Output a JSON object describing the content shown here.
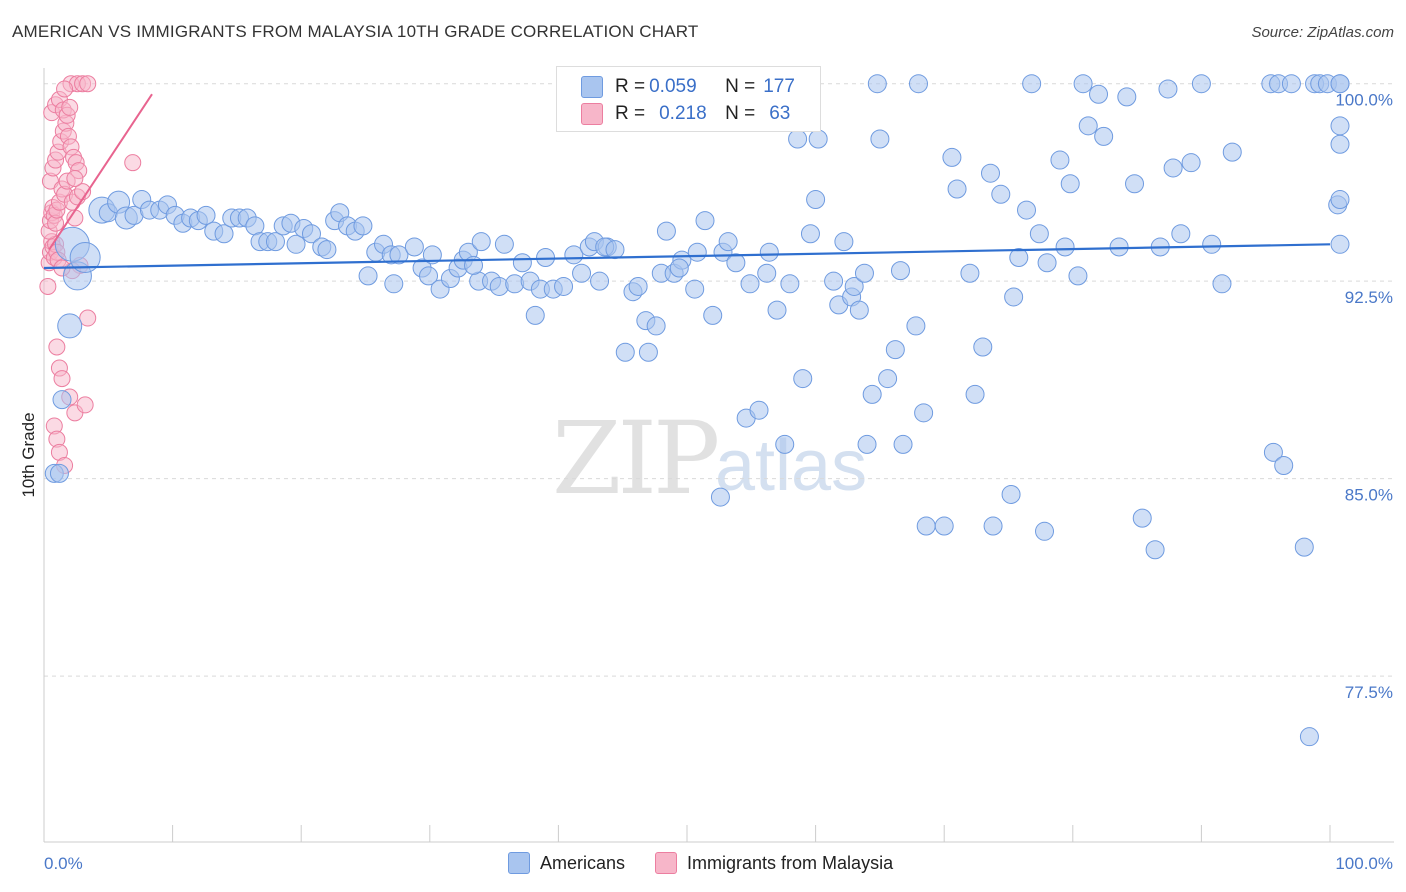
{
  "title": "AMERICAN VS IMMIGRANTS FROM MALAYSIA 10TH GRADE CORRELATION CHART",
  "source": "Source: ZipAtlas.com",
  "watermark": {
    "zip": "ZIP",
    "atlas": "atlas"
  },
  "legend": {
    "rows": [
      {
        "r_label": "R = ",
        "r_value": "0.059",
        "n_label": "N = ",
        "n_value": "177"
      },
      {
        "r_label": "R = ",
        "r_value": "0.218",
        "n_label": "N = ",
        "n_value": "63"
      }
    ]
  },
  "bottom_legend": [
    "Americans",
    "Immigrants from Malaysia"
  ],
  "colors": {
    "blue_fill": "#a9c5ef",
    "blue_stroke": "#6f9be0",
    "blue_line": "#2f6fcf",
    "pink_fill": "#f7b6c9",
    "pink_stroke": "#ec7ea0",
    "pink_line": "#e8648f",
    "grid": "#d9d9d9",
    "tick_text": "#4a78c8"
  },
  "chart_data": {
    "type": "scatter",
    "title": "AMERICAN VS IMMIGRANTS FROM MALAYSIA 10TH GRADE CORRELATION CHART",
    "xlabel": "",
    "ylabel": "10th Grade",
    "xlim": [
      0,
      100
    ],
    "ylim": [
      71.2,
      100.9
    ],
    "x_tick_labels": [
      "0.0%",
      "100.0%"
    ],
    "y_ticks": [
      {
        "value": 100.0,
        "label": "100.0%"
      },
      {
        "value": 92.5,
        "label": "92.5%"
      },
      {
        "value": 85.0,
        "label": "85.0%"
      },
      {
        "value": 77.5,
        "label": "77.5%"
      }
    ],
    "series": [
      {
        "name": "Americans",
        "R": 0.059,
        "N": 177,
        "trend": {
          "x": [
            0,
            100
          ],
          "y": [
            93.0,
            93.9
          ]
        },
        "points": [
          [
            0.8,
            85.2
          ],
          [
            1.2,
            85.2
          ],
          [
            1.4,
            88.0
          ],
          [
            2.0,
            90.8
          ],
          [
            2.2,
            93.9
          ],
          [
            2.6,
            92.7
          ],
          [
            3.2,
            93.4
          ],
          [
            4.5,
            95.2
          ],
          [
            5.0,
            95.1
          ],
          [
            5.8,
            95.5
          ],
          [
            6.4,
            94.9
          ],
          [
            7.0,
            95.0
          ],
          [
            7.6,
            95.6
          ],
          [
            8.2,
            95.2
          ],
          [
            9.0,
            95.2
          ],
          [
            9.6,
            95.4
          ],
          [
            10.2,
            95.0
          ],
          [
            10.8,
            94.7
          ],
          [
            11.4,
            94.9
          ],
          [
            12.0,
            94.8
          ],
          [
            12.6,
            95.0
          ],
          [
            13.2,
            94.4
          ],
          [
            14.0,
            94.3
          ],
          [
            14.6,
            94.9
          ],
          [
            15.2,
            94.9
          ],
          [
            15.8,
            94.9
          ],
          [
            16.4,
            94.6
          ],
          [
            16.8,
            94.0
          ],
          [
            17.4,
            94.0
          ],
          [
            18.0,
            94.0
          ],
          [
            18.6,
            94.6
          ],
          [
            19.2,
            94.7
          ],
          [
            19.6,
            93.9
          ],
          [
            20.2,
            94.5
          ],
          [
            20.8,
            94.3
          ],
          [
            21.6,
            93.8
          ],
          [
            22.0,
            93.7
          ],
          [
            22.6,
            94.8
          ],
          [
            23.0,
            95.1
          ],
          [
            23.6,
            94.6
          ],
          [
            24.2,
            94.4
          ],
          [
            24.8,
            94.6
          ],
          [
            25.2,
            92.7
          ],
          [
            25.8,
            93.6
          ],
          [
            26.4,
            93.9
          ],
          [
            27.0,
            93.5
          ],
          [
            27.2,
            92.4
          ],
          [
            27.6,
            93.5
          ],
          [
            28.8,
            93.8
          ],
          [
            29.4,
            93.0
          ],
          [
            29.9,
            92.7
          ],
          [
            30.2,
            93.5
          ],
          [
            30.8,
            92.2
          ],
          [
            31.6,
            92.6
          ],
          [
            32.2,
            93.0
          ],
          [
            32.6,
            93.3
          ],
          [
            33.0,
            93.6
          ],
          [
            33.8,
            92.5
          ],
          [
            33.4,
            93.1
          ],
          [
            34.0,
            94.0
          ],
          [
            34.8,
            92.5
          ],
          [
            35.4,
            92.3
          ],
          [
            35.8,
            93.9
          ],
          [
            36.6,
            92.4
          ],
          [
            37.2,
            93.2
          ],
          [
            37.8,
            92.5
          ],
          [
            38.2,
            91.2
          ],
          [
            38.6,
            92.2
          ],
          [
            39.0,
            93.4
          ],
          [
            39.6,
            92.2
          ],
          [
            40.4,
            92.3
          ],
          [
            41.2,
            93.5
          ],
          [
            41.8,
            92.8
          ],
          [
            42.4,
            93.8
          ],
          [
            42.8,
            94.0
          ],
          [
            43.2,
            92.5
          ],
          [
            43.8,
            93.8
          ],
          [
            43.6,
            93.8
          ],
          [
            44.4,
            93.7
          ],
          [
            45.2,
            89.8
          ],
          [
            45.8,
            92.1
          ],
          [
            46.2,
            92.3
          ],
          [
            46.8,
            91.0
          ],
          [
            47.0,
            89.8
          ],
          [
            47.6,
            90.8
          ],
          [
            48.0,
            92.8
          ],
          [
            48.4,
            94.4
          ],
          [
            49.0,
            92.8
          ],
          [
            49.6,
            93.3
          ],
          [
            49.4,
            93.0
          ],
          [
            50.6,
            92.2
          ],
          [
            50.8,
            93.6
          ],
          [
            51.4,
            94.8
          ],
          [
            52.0,
            91.2
          ],
          [
            52.6,
            84.3
          ],
          [
            52.8,
            93.6
          ],
          [
            53.2,
            94.0
          ],
          [
            53.8,
            93.2
          ],
          [
            54.6,
            87.3
          ],
          [
            54.9,
            92.4
          ],
          [
            55.6,
            87.6
          ],
          [
            56.2,
            92.8
          ],
          [
            56.4,
            93.6
          ],
          [
            57.0,
            91.4
          ],
          [
            57.6,
            86.3
          ],
          [
            58.0,
            92.4
          ],
          [
            58.6,
            97.9
          ],
          [
            59.0,
            88.8
          ],
          [
            59.6,
            94.3
          ],
          [
            60.0,
            95.6
          ],
          [
            60.2,
            97.9
          ],
          [
            61.4,
            92.5
          ],
          [
            61.8,
            91.6
          ],
          [
            62.2,
            94.0
          ],
          [
            62.8,
            91.9
          ],
          [
            63.0,
            92.3
          ],
          [
            63.4,
            91.4
          ],
          [
            63.8,
            92.8
          ],
          [
            64.0,
            86.3
          ],
          [
            64.4,
            88.2
          ],
          [
            64.8,
            100.0
          ],
          [
            65.0,
            97.9
          ],
          [
            65.6,
            88.8
          ],
          [
            66.2,
            89.9
          ],
          [
            66.6,
            92.9
          ],
          [
            66.8,
            86.3
          ],
          [
            67.8,
            90.8
          ],
          [
            68.0,
            100.0
          ],
          [
            68.4,
            87.5
          ],
          [
            68.6,
            83.2
          ],
          [
            70.0,
            83.2
          ],
          [
            70.6,
            97.2
          ],
          [
            71.0,
            96.0
          ],
          [
            72.0,
            92.8
          ],
          [
            72.4,
            88.2
          ],
          [
            73.0,
            90.0
          ],
          [
            73.6,
            96.6
          ],
          [
            73.8,
            83.2
          ],
          [
            74.4,
            95.8
          ],
          [
            75.2,
            84.4
          ],
          [
            75.4,
            91.9
          ],
          [
            75.8,
            93.4
          ],
          [
            76.4,
            95.2
          ],
          [
            76.8,
            100.0
          ],
          [
            77.4,
            94.3
          ],
          [
            77.8,
            83.0
          ],
          [
            78.0,
            93.2
          ],
          [
            79.0,
            97.1
          ],
          [
            79.4,
            93.8
          ],
          [
            79.8,
            96.2
          ],
          [
            80.4,
            92.7
          ],
          [
            80.8,
            100.0
          ],
          [
            81.2,
            98.4
          ],
          [
            82.0,
            99.6
          ],
          [
            82.4,
            98.0
          ],
          [
            83.6,
            93.8
          ],
          [
            84.2,
            99.5
          ],
          [
            84.8,
            96.2
          ],
          [
            85.4,
            83.5
          ],
          [
            86.4,
            82.3
          ],
          [
            86.8,
            93.8
          ],
          [
            87.4,
            99.8
          ],
          [
            87.8,
            96.8
          ],
          [
            88.4,
            94.3
          ],
          [
            89.2,
            97.0
          ],
          [
            90.0,
            100.0
          ],
          [
            90.8,
            93.9
          ],
          [
            91.6,
            92.4
          ],
          [
            92.4,
            97.4
          ],
          [
            95.4,
            100.0
          ],
          [
            95.6,
            86.0
          ],
          [
            96.0,
            100.0
          ],
          [
            96.4,
            85.5
          ],
          [
            97.0,
            100.0
          ],
          [
            98.0,
            82.4
          ],
          [
            98.4,
            75.2
          ],
          [
            98.8,
            100.0
          ],
          [
            99.2,
            100.0
          ],
          [
            99.8,
            100.0
          ],
          [
            100.6,
            95.4
          ],
          [
            101.0,
            95.6
          ],
          [
            101.2,
            100.0
          ],
          [
            101.6,
            97.7
          ],
          [
            103.8,
            100.0
          ],
          [
            104.6,
            98.4
          ],
          [
            105.0,
            93.9
          ]
        ]
      },
      {
        "name": "Immigrants from Malaysia",
        "R": 0.218,
        "N": 63,
        "trend": {
          "x": [
            0.4,
            8.4
          ],
          "y": [
            93.7,
            99.6
          ]
        },
        "points": [
          [
            0.3,
            92.3
          ],
          [
            0.4,
            93.2
          ],
          [
            0.5,
            93.6
          ],
          [
            0.6,
            94.0
          ],
          [
            0.7,
            93.8
          ],
          [
            0.8,
            93.4
          ],
          [
            0.9,
            93.9
          ],
          [
            1.0,
            93.6
          ],
          [
            1.1,
            93.3
          ],
          [
            0.4,
            94.4
          ],
          [
            0.5,
            94.8
          ],
          [
            0.6,
            95.1
          ],
          [
            0.7,
            95.3
          ],
          [
            0.8,
            95.0
          ],
          [
            0.9,
            94.7
          ],
          [
            1.0,
            95.2
          ],
          [
            1.2,
            95.5
          ],
          [
            0.5,
            96.3
          ],
          [
            0.7,
            96.8
          ],
          [
            0.9,
            97.1
          ],
          [
            1.1,
            97.4
          ],
          [
            1.3,
            97.8
          ],
          [
            1.5,
            98.2
          ],
          [
            1.7,
            98.5
          ],
          [
            1.9,
            98.0
          ],
          [
            2.1,
            97.6
          ],
          [
            2.3,
            97.2
          ],
          [
            2.5,
            97.0
          ],
          [
            2.7,
            96.7
          ],
          [
            0.6,
            98.9
          ],
          [
            0.9,
            99.2
          ],
          [
            1.2,
            99.4
          ],
          [
            1.5,
            99.0
          ],
          [
            1.8,
            98.8
          ],
          [
            2.0,
            99.1
          ],
          [
            1.4,
            96.0
          ],
          [
            1.6,
            95.8
          ],
          [
            1.8,
            96.3
          ],
          [
            2.2,
            95.5
          ],
          [
            2.6,
            95.7
          ],
          [
            3.0,
            95.9
          ],
          [
            2.4,
            94.9
          ],
          [
            2.8,
            93.1
          ],
          [
            2.2,
            92.9
          ],
          [
            1.4,
            93.0
          ],
          [
            1.0,
            90.0
          ],
          [
            1.2,
            89.2
          ],
          [
            1.4,
            88.8
          ],
          [
            2.0,
            88.1
          ],
          [
            2.4,
            87.5
          ],
          [
            3.2,
            87.8
          ],
          [
            3.4,
            91.1
          ],
          [
            0.8,
            87.0
          ],
          [
            1.0,
            86.5
          ],
          [
            1.2,
            86.0
          ],
          [
            1.6,
            85.5
          ],
          [
            6.9,
            97.0
          ],
          [
            2.1,
            100.0
          ],
          [
            2.6,
            100.0
          ],
          [
            3.0,
            100.0
          ],
          [
            3.4,
            100.0
          ],
          [
            1.6,
            99.8
          ],
          [
            2.4,
            96.4
          ]
        ]
      }
    ]
  }
}
